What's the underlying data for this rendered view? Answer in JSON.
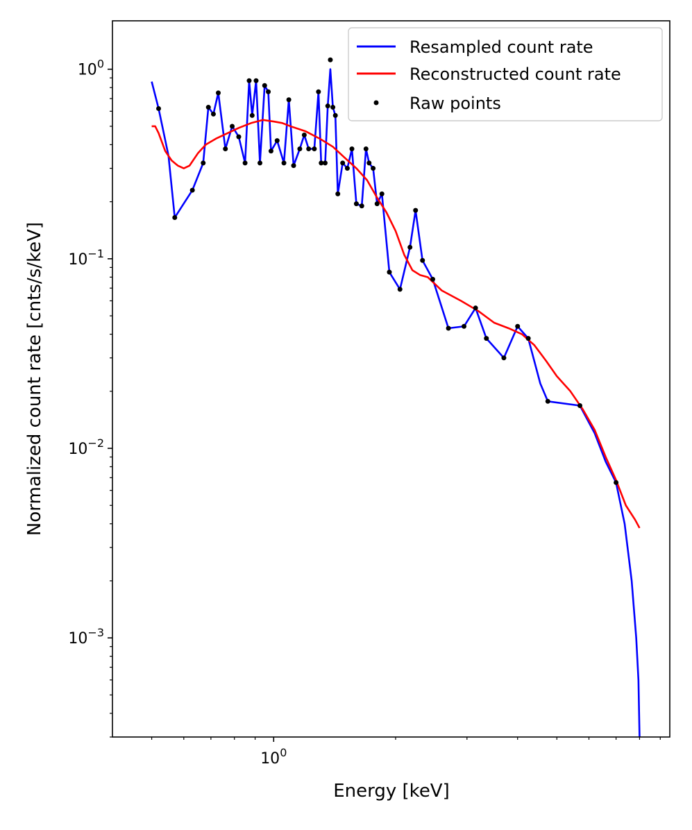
{
  "chart_data": {
    "type": "line",
    "title": "",
    "xlabel": "Energy [keV]",
    "ylabel": "Normalized count rate [cnts/s/keV]",
    "xscale": "log",
    "yscale": "log",
    "xlim": [
      0.4,
      9.5
    ],
    "ylim": [
      0.0003,
      1.8
    ],
    "x_major_ticks": [
      {
        "value": 1,
        "base": "10",
        "exp": "0"
      }
    ],
    "x_minor_ticks": [
      0.5,
      0.6,
      0.7,
      0.8,
      0.9,
      2,
      3,
      4,
      5,
      6,
      7,
      8,
      9
    ],
    "y_major_ticks": [
      {
        "value": 1,
        "base": "10",
        "exp": "0"
      },
      {
        "value": 0.1,
        "base": "10",
        "exp": "−1"
      },
      {
        "value": 0.01,
        "base": "10",
        "exp": "−2"
      },
      {
        "value": 0.001,
        "base": "10",
        "exp": "−3"
      }
    ],
    "legend": {
      "placement": "top-right",
      "entries": [
        "Resampled count rate",
        "Reconstructed count rate",
        "Raw points"
      ]
    },
    "series": [
      {
        "name": "Resampled count rate",
        "color": "#0000ff",
        "style": "line",
        "points": [
          [
            0.5,
            0.86
          ],
          [
            0.52,
            0.62
          ],
          [
            0.55,
            0.35
          ],
          [
            0.57,
            0.165
          ],
          [
            0.63,
            0.23
          ],
          [
            0.67,
            0.32
          ],
          [
            0.69,
            0.63
          ],
          [
            0.71,
            0.58
          ],
          [
            0.73,
            0.75
          ],
          [
            0.76,
            0.38
          ],
          [
            0.79,
            0.5
          ],
          [
            0.82,
            0.44
          ],
          [
            0.85,
            0.32
          ],
          [
            0.87,
            0.87
          ],
          [
            0.885,
            0.57
          ],
          [
            0.905,
            0.87
          ],
          [
            0.925,
            0.32
          ],
          [
            0.95,
            0.82
          ],
          [
            0.97,
            0.76
          ],
          [
            0.985,
            0.37
          ],
          [
            1.02,
            0.42
          ],
          [
            1.06,
            0.32
          ],
          [
            1.09,
            0.69
          ],
          [
            1.12,
            0.31
          ],
          [
            1.16,
            0.38
          ],
          [
            1.19,
            0.45
          ],
          [
            1.22,
            0.38
          ],
          [
            1.26,
            0.38
          ],
          [
            1.29,
            0.76
          ],
          [
            1.31,
            0.32
          ],
          [
            1.34,
            0.32
          ],
          [
            1.36,
            0.64
          ],
          [
            1.38,
            1.0
          ],
          [
            1.4,
            0.63
          ],
          [
            1.42,
            0.57
          ],
          [
            1.44,
            0.22
          ],
          [
            1.48,
            0.32
          ],
          [
            1.52,
            0.3
          ],
          [
            1.56,
            0.38
          ],
          [
            1.6,
            0.195
          ],
          [
            1.65,
            0.19
          ],
          [
            1.69,
            0.38
          ],
          [
            1.72,
            0.32
          ],
          [
            1.76,
            0.3
          ],
          [
            1.8,
            0.195
          ],
          [
            1.85,
            0.22
          ],
          [
            1.93,
            0.085
          ],
          [
            2.05,
            0.069
          ],
          [
            2.17,
            0.115
          ],
          [
            2.24,
            0.18
          ],
          [
            2.33,
            0.098
          ],
          [
            2.47,
            0.078
          ],
          [
            2.7,
            0.043
          ],
          [
            2.95,
            0.044
          ],
          [
            3.15,
            0.055
          ],
          [
            3.35,
            0.038
          ],
          [
            3.7,
            0.03
          ],
          [
            4.0,
            0.044
          ],
          [
            4.25,
            0.038
          ],
          [
            4.55,
            0.022
          ],
          [
            4.75,
            0.0177
          ],
          [
            5.7,
            0.0168
          ],
          [
            6.2,
            0.012
          ],
          [
            6.6,
            0.0085
          ],
          [
            7.0,
            0.0066
          ],
          [
            7.35,
            0.004
          ],
          [
            7.65,
            0.002
          ],
          [
            7.85,
            0.001
          ],
          [
            7.95,
            0.0006
          ],
          [
            8.0,
            0.0003
          ]
        ]
      },
      {
        "name": "Reconstructed count rate",
        "color": "#ff0000",
        "style": "line",
        "points": [
          [
            0.5,
            0.5
          ],
          [
            0.51,
            0.5
          ],
          [
            0.52,
            0.46
          ],
          [
            0.54,
            0.37
          ],
          [
            0.56,
            0.33
          ],
          [
            0.58,
            0.31
          ],
          [
            0.6,
            0.3
          ],
          [
            0.62,
            0.31
          ],
          [
            0.65,
            0.36
          ],
          [
            0.68,
            0.4
          ],
          [
            0.72,
            0.43
          ],
          [
            0.77,
            0.46
          ],
          [
            0.82,
            0.49
          ],
          [
            0.88,
            0.52
          ],
          [
            0.94,
            0.54
          ],
          [
            1.0,
            0.53
          ],
          [
            1.05,
            0.52
          ],
          [
            1.1,
            0.5
          ],
          [
            1.2,
            0.47
          ],
          [
            1.3,
            0.43
          ],
          [
            1.4,
            0.39
          ],
          [
            1.5,
            0.34
          ],
          [
            1.6,
            0.3
          ],
          [
            1.7,
            0.26
          ],
          [
            1.8,
            0.21
          ],
          [
            1.9,
            0.175
          ],
          [
            2.0,
            0.14
          ],
          [
            2.1,
            0.105
          ],
          [
            2.2,
            0.087
          ],
          [
            2.3,
            0.082
          ],
          [
            2.4,
            0.08
          ],
          [
            2.6,
            0.068
          ],
          [
            2.9,
            0.06
          ],
          [
            3.2,
            0.053
          ],
          [
            3.5,
            0.046
          ],
          [
            3.8,
            0.043
          ],
          [
            4.1,
            0.04
          ],
          [
            4.4,
            0.035
          ],
          [
            4.7,
            0.029
          ],
          [
            5.0,
            0.024
          ],
          [
            5.4,
            0.02
          ],
          [
            5.8,
            0.016
          ],
          [
            6.2,
            0.0125
          ],
          [
            6.6,
            0.009
          ],
          [
            7.0,
            0.0068
          ],
          [
            7.4,
            0.005
          ],
          [
            7.8,
            0.0042
          ],
          [
            8.0,
            0.0038
          ]
        ]
      },
      {
        "name": "Raw points",
        "color": "#000000",
        "style": "scatter",
        "points": [
          [
            0.52,
            0.62
          ],
          [
            0.57,
            0.165
          ],
          [
            0.63,
            0.23
          ],
          [
            0.67,
            0.32
          ],
          [
            0.69,
            0.63
          ],
          [
            0.71,
            0.58
          ],
          [
            0.73,
            0.75
          ],
          [
            0.76,
            0.38
          ],
          [
            0.79,
            0.5
          ],
          [
            0.82,
            0.44
          ],
          [
            0.85,
            0.32
          ],
          [
            0.87,
            0.87
          ],
          [
            0.885,
            0.57
          ],
          [
            0.905,
            0.87
          ],
          [
            0.925,
            0.32
          ],
          [
            0.95,
            0.82
          ],
          [
            0.97,
            0.76
          ],
          [
            0.985,
            0.37
          ],
          [
            1.02,
            0.42
          ],
          [
            1.06,
            0.32
          ],
          [
            1.09,
            0.69
          ],
          [
            1.12,
            0.31
          ],
          [
            1.16,
            0.38
          ],
          [
            1.19,
            0.45
          ],
          [
            1.22,
            0.38
          ],
          [
            1.26,
            0.38
          ],
          [
            1.29,
            0.76
          ],
          [
            1.31,
            0.32
          ],
          [
            1.34,
            0.32
          ],
          [
            1.36,
            0.64
          ],
          [
            1.38,
            1.12
          ],
          [
            1.4,
            0.63
          ],
          [
            1.42,
            0.57
          ],
          [
            1.44,
            0.22
          ],
          [
            1.48,
            0.32
          ],
          [
            1.52,
            0.3
          ],
          [
            1.56,
            0.38
          ],
          [
            1.6,
            0.195
          ],
          [
            1.65,
            0.19
          ],
          [
            1.69,
            0.38
          ],
          [
            1.72,
            0.32
          ],
          [
            1.76,
            0.3
          ],
          [
            1.8,
            0.195
          ],
          [
            1.85,
            0.22
          ],
          [
            1.93,
            0.085
          ],
          [
            2.05,
            0.069
          ],
          [
            2.17,
            0.115
          ],
          [
            2.24,
            0.18
          ],
          [
            2.33,
            0.098
          ],
          [
            2.47,
            0.078
          ],
          [
            2.7,
            0.043
          ],
          [
            2.95,
            0.044
          ],
          [
            3.15,
            0.055
          ],
          [
            3.35,
            0.038
          ],
          [
            3.7,
            0.03
          ],
          [
            4.0,
            0.044
          ],
          [
            4.25,
            0.038
          ],
          [
            4.75,
            0.0177
          ],
          [
            5.7,
            0.0168
          ],
          [
            7.0,
            0.0066
          ]
        ]
      }
    ]
  }
}
